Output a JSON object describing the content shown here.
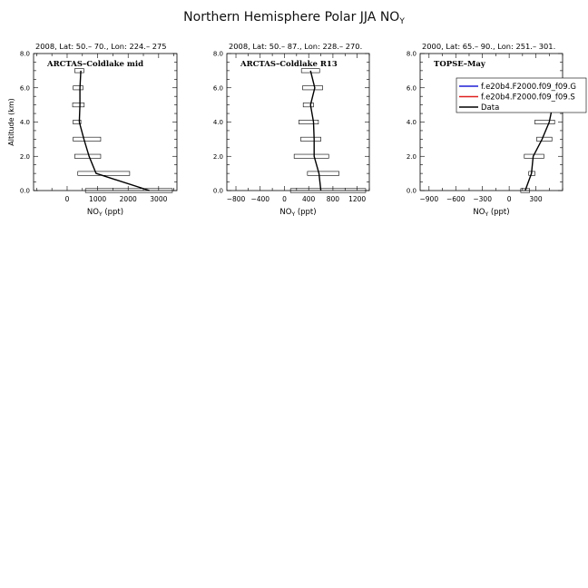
{
  "figure": {
    "title_main": "Northern Hemisphere Polar JJA NO",
    "title_sub": "Y"
  },
  "legend": {
    "entries": [
      {
        "label": "f.e20b4.F2000.f09_f09.G",
        "color": "#1f1fd6"
      },
      {
        "label": "f.e20b4.F2000.f09_f09.S",
        "color": "#e02020"
      },
      {
        "label": "Data",
        "color": "#000000"
      }
    ]
  },
  "chart_data": [
    {
      "type": "line",
      "header": "2008, Lat:  50.– 70., Lon: 224.– 275",
      "title": "ARCTAS–Coldlake mid",
      "xlabel_main": "NO",
      "xlabel_sub": "Y",
      "xlabel_unit": " (ppt)",
      "ylabel": "Altitude (km)",
      "xlim": [
        -1100,
        3600
      ],
      "ylim": [
        0,
        8
      ],
      "xticks": [
        0,
        1000,
        2000,
        3000
      ],
      "xminor": 500,
      "yticks": [
        0,
        2,
        4,
        6,
        8
      ],
      "ytick_labels": [
        "0.0",
        "2.0",
        "4.0",
        "6.0",
        "8.0"
      ],
      "yminor": 0.5,
      "series": [
        {
          "color": "#000000",
          "x": [
            2700,
            950,
            720,
            550,
            400,
            420,
            420,
            450
          ],
          "y": [
            0,
            1,
            2,
            3,
            4,
            5,
            6,
            7
          ]
        }
      ],
      "error_bars": [
        {
          "y": 0,
          "min": 600,
          "max": 3450
        },
        {
          "y": 1,
          "min": 350,
          "max": 2050
        },
        {
          "y": 2,
          "min": 250,
          "max": 1100
        },
        {
          "y": 3,
          "min": 200,
          "max": 1100
        },
        {
          "y": 4,
          "min": 200,
          "max": 450
        },
        {
          "y": 5,
          "min": 180,
          "max": 560
        },
        {
          "y": 6,
          "min": 200,
          "max": 520
        },
        {
          "y": 7,
          "min": 250,
          "max": 550
        }
      ]
    },
    {
      "type": "line",
      "header": "2008, Lat:  50.– 87., Lon: 228.– 270.",
      "title": "ARCTAS–Coldlake R13",
      "xlabel_main": "NO",
      "xlabel_sub": "Y",
      "xlabel_unit": " (ppt)",
      "ylabel": "",
      "xlim": [
        -950,
        1400
      ],
      "ylim": [
        0,
        8
      ],
      "xticks": [
        -800,
        -400,
        0,
        400,
        800,
        1200
      ],
      "xminor": 200,
      "yticks": [
        0,
        2,
        4,
        6,
        8
      ],
      "ytick_labels": [
        "0.0",
        "2.0",
        "4.0",
        "6.0",
        "8.0"
      ],
      "yminor": 0.5,
      "series": [
        {
          "color": "#000000",
          "x": [
            600,
            570,
            490,
            490,
            480,
            430,
            500,
            430
          ],
          "y": [
            0,
            1,
            2,
            3,
            4,
            5,
            6,
            7
          ]
        }
      ],
      "error_bars": [
        {
          "y": 0,
          "min": 100,
          "max": 1340
        },
        {
          "y": 1,
          "min": 380,
          "max": 900
        },
        {
          "y": 2,
          "min": 160,
          "max": 730
        },
        {
          "y": 3,
          "min": 270,
          "max": 600
        },
        {
          "y": 4,
          "min": 240,
          "max": 560
        },
        {
          "y": 5,
          "min": 310,
          "max": 480
        },
        {
          "y": 6,
          "min": 300,
          "max": 630
        },
        {
          "y": 7,
          "min": 280,
          "max": 580
        }
      ]
    },
    {
      "type": "line",
      "header": "2000, Lat: 65.– 90., Lon: 251.– 301.",
      "title": "TOPSE–May",
      "xlabel_main": "NO",
      "xlabel_sub": "Y",
      "xlabel_unit": " (ppt)",
      "ylabel": "",
      "xlim": [
        -1000,
        600
      ],
      "ylim": [
        0,
        8
      ],
      "xticks": [
        -900,
        -600,
        -300,
        0,
        300
      ],
      "xminor": 150,
      "yticks": [
        0,
        2,
        4,
        6,
        8
      ],
      "ytick_labels": [
        "0.0",
        "2.0",
        "4.0",
        "6.0",
        "8.0"
      ],
      "yminor": 0.5,
      "series": [
        {
          "color": "#000000",
          "x": [
            180,
            250,
            270,
            370,
            450,
            490
          ],
          "y": [
            0,
            1,
            2,
            3,
            4,
            5
          ]
        }
      ],
      "error_bars": [
        {
          "y": 0,
          "min": 130,
          "max": 230
        },
        {
          "y": 1,
          "min": 220,
          "max": 290
        },
        {
          "y": 2,
          "min": 170,
          "max": 390
        },
        {
          "y": 3,
          "min": 310,
          "max": 480
        },
        {
          "y": 4,
          "min": 290,
          "max": 510
        },
        {
          "y": 5,
          "min": 460,
          "max": 540
        }
      ]
    }
  ]
}
